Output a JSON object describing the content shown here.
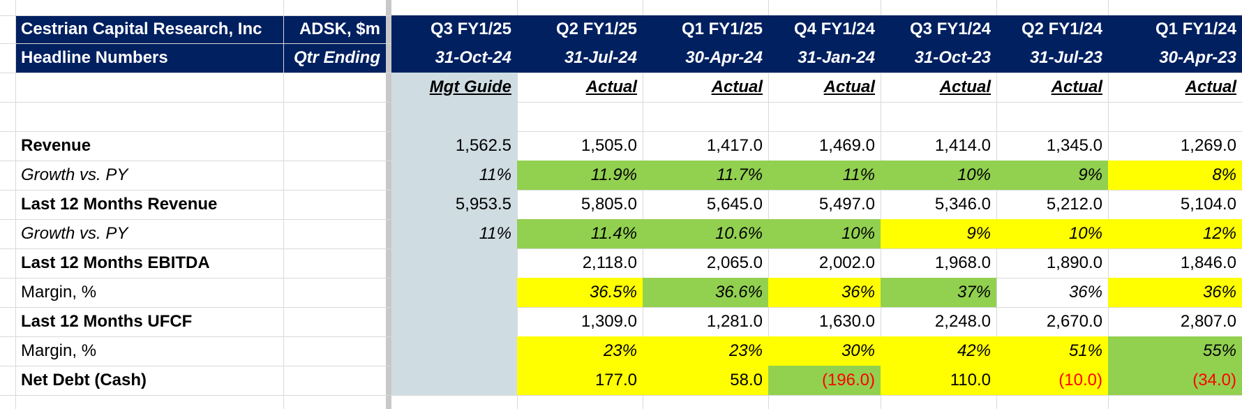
{
  "header": {
    "company": "Cestrian Capital Research, Inc",
    "ticker": "ADSK, $m",
    "subtitle": "Headline Numbers",
    "qtr_ending": "Qtr Ending"
  },
  "periods": [
    {
      "quarter": "Q3 FY1/25",
      "date": "31-Oct-24",
      "type": "Mgt Guide"
    },
    {
      "quarter": "Q2 FY1/25",
      "date": "31-Jul-24",
      "type": "Actual"
    },
    {
      "quarter": "Q1 FY1/25",
      "date": "30-Apr-24",
      "type": "Actual"
    },
    {
      "quarter": "Q4 FY1/24",
      "date": "31-Jan-24",
      "type": "Actual"
    },
    {
      "quarter": "Q3 FY1/24",
      "date": "31-Oct-23",
      "type": "Actual"
    },
    {
      "quarter": "Q2 FY1/24",
      "date": "31-Jul-23",
      "type": "Actual"
    },
    {
      "quarter": "Q1 FY1/24",
      "date": "30-Apr-23",
      "type": "Actual"
    }
  ],
  "colors": {
    "header_bg": "#002060",
    "guide_bg": "#cfdde3",
    "green": "#92d050",
    "yellow": "#ffff00",
    "negative": "#ff0000"
  },
  "rows": [
    {
      "label": "Revenue",
      "bold": true,
      "italic": false,
      "values": [
        "1,562.5",
        "1,505.0",
        "1,417.0",
        "1,469.0",
        "1,414.0",
        "1,345.0",
        "1,269.0"
      ],
      "fills": [
        "",
        "",
        "",
        "",
        "",
        "",
        ""
      ]
    },
    {
      "label": "Growth vs. PY",
      "bold": false,
      "italic": true,
      "values": [
        "11%",
        "11.9%",
        "11.7%",
        "11%",
        "10%",
        "9%",
        "8%"
      ],
      "fills": [
        "",
        "green",
        "green",
        "green",
        "green",
        "green",
        "yellow"
      ]
    },
    {
      "label": "Last 12 Months Revenue",
      "bold": true,
      "italic": false,
      "values": [
        "5,953.5",
        "5,805.0",
        "5,645.0",
        "5,497.0",
        "5,346.0",
        "5,212.0",
        "5,104.0"
      ],
      "fills": [
        "",
        "",
        "",
        "",
        "",
        "",
        ""
      ]
    },
    {
      "label": "Growth vs. PY",
      "bold": false,
      "italic": true,
      "values": [
        "11%",
        "11.4%",
        "10.6%",
        "10%",
        "9%",
        "10%",
        "12%"
      ],
      "fills": [
        "",
        "green",
        "green",
        "green",
        "yellow",
        "yellow",
        "yellow"
      ]
    },
    {
      "label": "Last 12 Months EBITDA",
      "bold": true,
      "italic": false,
      "values": [
        "",
        "2,118.0",
        "2,065.0",
        "2,002.0",
        "1,968.0",
        "1,890.0",
        "1,846.0"
      ],
      "fills": [
        "",
        "",
        "",
        "",
        "",
        "",
        ""
      ]
    },
    {
      "label": "Margin, %",
      "bold": false,
      "italic": false,
      "value_italic": true,
      "values": [
        "",
        "36.5%",
        "36.6%",
        "36%",
        "37%",
        "36%",
        "36%"
      ],
      "fills": [
        "",
        "yellow",
        "green",
        "yellow",
        "green",
        "",
        "yellow"
      ]
    },
    {
      "label": "Last 12 Months UFCF",
      "bold": true,
      "italic": false,
      "values": [
        "",
        "1,309.0",
        "1,281.0",
        "1,630.0",
        "2,248.0",
        "2,670.0",
        "2,807.0"
      ],
      "fills": [
        "",
        "",
        "",
        "",
        "",
        "",
        ""
      ]
    },
    {
      "label": "Margin, %",
      "bold": false,
      "italic": false,
      "value_italic": true,
      "values": [
        "",
        "23%",
        "23%",
        "30%",
        "42%",
        "51%",
        "55%"
      ],
      "fills": [
        "",
        "yellow",
        "yellow",
        "yellow",
        "yellow",
        "yellow",
        "green"
      ]
    },
    {
      "label": "Net Debt (Cash)",
      "bold": true,
      "italic": false,
      "values": [
        "",
        "177.0",
        "58.0",
        "(196.0)",
        "110.0",
        "(10.0)",
        "(34.0)"
      ],
      "fills": [
        "",
        "yellow",
        "yellow",
        "green",
        "yellow",
        "yellow",
        "green"
      ],
      "negative": [
        false,
        false,
        false,
        true,
        false,
        true,
        true
      ]
    }
  ]
}
